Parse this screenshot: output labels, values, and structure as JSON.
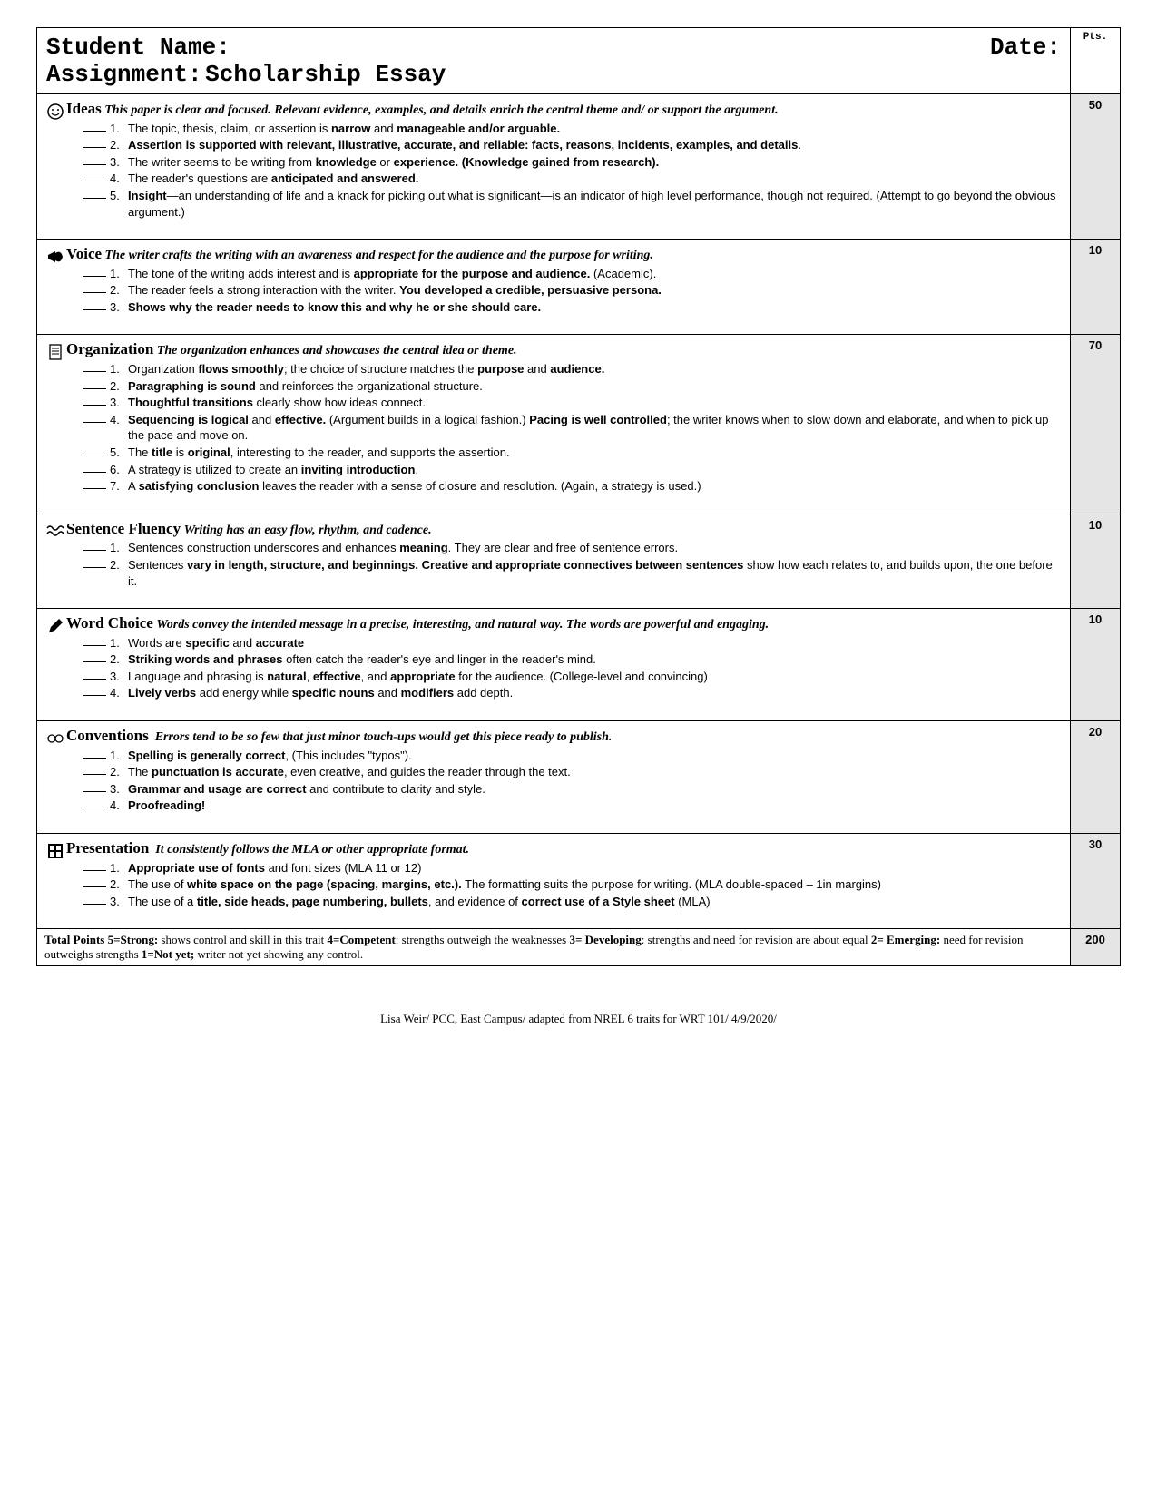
{
  "header": {
    "student_name_label": "Student Name:",
    "date_label": "Date:",
    "assignment_label": "Assignment:",
    "assignment_value": "Scholarship Essay",
    "pts_label": "Pts."
  },
  "sections": {
    "ideas": {
      "title": "Ideas",
      "desc": "This paper is clear and focused. Relevant evidence, examples, and details enrich the central theme and/ or support the argument.",
      "points": "50",
      "items": [
        "The topic, thesis, claim, or assertion is <b>narrow</b> and <b>manageable and/or arguable.</b>",
        "<b>Assertion is supported with relevant, illustrative, accurate, and reliable: facts, reasons, incidents, examples, and details</b>.",
        "The writer seems to be writing from <b>knowledge</b> or <b>experience. (Knowledge gained from research).</b>",
        "The reader's questions are <b>anticipated and answered.</b>",
        "<b>Insight</b>—an understanding of life and a knack for picking out what is significant—is an indicator of high level performance, though not required. (Attempt to go beyond the obvious argument.)"
      ]
    },
    "voice": {
      "title": "Voice",
      "desc": "The writer crafts the writing with an awareness and respect for the audience and the purpose for writing.",
      "points": "10",
      "items": [
        "The tone of the writing adds interest and is <b>appropriate for the purpose and audience.</b> (Academic).",
        "The reader feels a strong interaction with the writer. <b>You developed a credible, persuasive persona.</b>",
        "<b>Shows why the reader needs to know this and why he or she should care.</b>"
      ]
    },
    "organization": {
      "title": "Organization",
      "desc": "The organization enhances and showcases the central idea or theme.",
      "points": "70",
      "items": [
        "Organization <b>flows smoothly</b>; the choice of structure matches the <b>purpose</b> and <b>audience.</b>",
        "<b>Paragraphing is sound</b> and reinforces the organizational structure.",
        "<b>Thoughtful transitions</b> clearly show how ideas connect.",
        "<b>Sequencing is logical</b> and <b>effective.</b> (Argument builds in a logical fashion.) <b>Pacing is well controlled</b>; the writer knows when to slow down and elaborate, and when to pick up the pace and move on.",
        "The <b>title</b> is <b>original</b>, interesting to the reader, and supports the assertion.",
        "A strategy is utilized to create an <b>inviting introduction</b>.",
        "A <b>satisfying conclusion</b> leaves the reader with a sense of closure and resolution. (Again, a strategy is used.)"
      ]
    },
    "fluency": {
      "title": "Sentence Fluency",
      "desc": "Writing has an easy flow, rhythm, and cadence.",
      "points": "10",
      "items": [
        "Sentences construction underscores and enhances <b>meaning</b>. They are clear and free of sentence errors.",
        "Sentences <b>vary in length, structure, and beginnings.  Creative and appropriate connectives between sentences</b> show how each relates to, and builds upon, the one before it."
      ]
    },
    "wordchoice": {
      "title": "Word Choice",
      "desc": "Words convey the intended message in a precise, interesting, and natural way.  The words are powerful and engaging.",
      "points": "10",
      "items": [
        "Words are <b>specific</b> and <b>accurate</b>",
        "<b>Striking words and phrases</b> often catch the reader's eye and linger in the reader's mind.",
        "Language and phrasing is <b>natural</b>, <b>effective</b>, and <b>appropriate</b> for the audience. (College-level and convincing)",
        "<b>Lively verbs</b> add energy while <b>specific nouns</b> and <b>modifiers</b> add depth."
      ]
    },
    "conventions": {
      "title": "Conventions",
      "desc": "Errors tend to be so few that just minor touch-ups would get this piece ready to publish.",
      "points": "20",
      "items": [
        "<b>Spelling is generally correct</b>, (This includes \"typos\").",
        "The <b>punctuation is accurate</b>, even creative, and guides the reader through the text.",
        "<b>Grammar and usage are correct</b> and contribute to clarity and style.",
        "<b>Proofreading!</b>"
      ]
    },
    "presentation": {
      "title": "Presentation",
      "desc": "It consistently follows the MLA or other appropriate format.",
      "points": "30",
      "items": [
        "<b>Appropriate use of fonts</b> and font sizes (MLA 11 or 12)",
        "The use of <b>white space on the page (spacing, margins, etc.).</b> The formatting suits the purpose for writing. (MLA double-spaced – 1in margins)",
        "The use of a <b>title, side heads, page numbering, bullets</b>, and evidence of <b>correct use of a Style sheet</b> (MLA)"
      ]
    }
  },
  "total": {
    "text": "<b>Total Points 5=Strong:</b> shows control and skill in this trait <b>4=Competent</b>: strengths outweigh the weaknesses <b>3= Developing</b>: strengths and need for revision are about equal <b>2= Emerging:</b> need for revision outweighs strengths <b>1=Not yet;</b> writer not yet showing any control.",
    "points": "200"
  },
  "footer": "Lisa Weir/ PCC, East Campus/ adapted from NREL 6 traits for WRT 101/ 4/9/2020/"
}
